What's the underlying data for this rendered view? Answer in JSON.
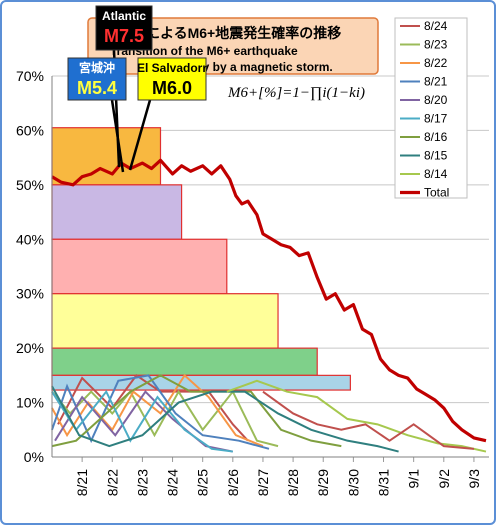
{
  "chart_data": {
    "type": "line",
    "title": "によるM6+地震発生確率の推移",
    "subtitle": "Transition of the M6+ earthquake",
    "subtitle2": "probability by a magnetic storm.",
    "formula": "M6+[%]=1−∏i(1−ki)",
    "ylim": [
      0,
      70
    ],
    "y_ticks": [
      "0%",
      "10%",
      "20%",
      "30%",
      "40%",
      "50%",
      "60%",
      "70%"
    ],
    "x_ticks": [
      "8/21",
      "8/22",
      "8/23",
      "8/24",
      "8/25",
      "8/26",
      "8/27",
      "8/28",
      "8/29",
      "8/30",
      "8/31",
      "9/1",
      "9/2",
      "9/3"
    ],
    "xlim": [
      0,
      14.5
    ],
    "series": [
      {
        "name": "8/24",
        "color": "#c0504d"
      },
      {
        "name": "8/23",
        "color": "#9bbb59"
      },
      {
        "name": "8/22",
        "color": "#f79646"
      },
      {
        "name": "8/21",
        "color": "#4f81bd"
      },
      {
        "name": "8/20",
        "color": "#8064a2"
      },
      {
        "name": "8/17",
        "color": "#4bacc6"
      },
      {
        "name": "8/16",
        "color": "#7f9f3f"
      },
      {
        "name": "8/15",
        "color": "#2f7f7f"
      },
      {
        "name": "8/14",
        "color": "#a6c84e"
      },
      {
        "name": "Total",
        "color": "#c00000"
      }
    ],
    "total": {
      "x": [
        0,
        0.3,
        0.7,
        1.0,
        1.3,
        1.6,
        2.0,
        2.3,
        2.6,
        3.0,
        3.3,
        3.6,
        4.0,
        4.3,
        4.6,
        5.0,
        5.3,
        5.6,
        5.9,
        6.1,
        6.3,
        6.5,
        6.8,
        7.0,
        7.3,
        7.6,
        7.9,
        8.2,
        8.5,
        8.8,
        9.1,
        9.4,
        9.7,
        10.0,
        10.3,
        10.6,
        10.9,
        11.2,
        11.5,
        11.8,
        12.1,
        12.4,
        12.7,
        13.0,
        13.3,
        13.6,
        14.0,
        14.4
      ],
      "y": [
        51.5,
        50.5,
        50,
        51.5,
        52,
        53,
        52,
        54,
        53,
        54,
        53,
        54.5,
        52,
        53.5,
        52.5,
        53.5,
        52,
        53.5,
        51,
        48,
        46.5,
        47,
        44.5,
        41,
        40,
        39,
        38.5,
        37,
        37.5,
        33,
        29,
        30,
        27,
        28,
        23.5,
        22.5,
        18,
        16,
        15,
        14.5,
        12.5,
        11.5,
        10.5,
        9,
        6.5,
        5,
        3.5,
        3
      ]
    },
    "bands": [
      {
        "from": 0,
        "to": 3.6,
        "low": 50,
        "high": 60.5,
        "color": "#f8b840"
      },
      {
        "from": 0,
        "to": 4.3,
        "low": 40,
        "high": 50,
        "color": "#c9b8e4"
      },
      {
        "from": 0,
        "to": 5.8,
        "low": 30,
        "high": 40,
        "color": "#ffb0b0"
      },
      {
        "from": 0,
        "to": 7.5,
        "low": 20,
        "high": 30,
        "color": "#ffff99"
      },
      {
        "from": 0,
        "to": 8.8,
        "low": 15,
        "high": 20,
        "color": "#7fd08a"
      },
      {
        "from": 0,
        "to": 9.9,
        "low": 12.3,
        "high": 15,
        "color": "#a9d4e8"
      }
    ],
    "events": [
      {
        "region": "Atlantic",
        "mag": "M7.5"
      },
      {
        "region": "宮城沖",
        "mag": "M5.4"
      },
      {
        "region": "El Salvadorr",
        "mag": "M6.0"
      }
    ],
    "legend_placement": "top-right"
  }
}
